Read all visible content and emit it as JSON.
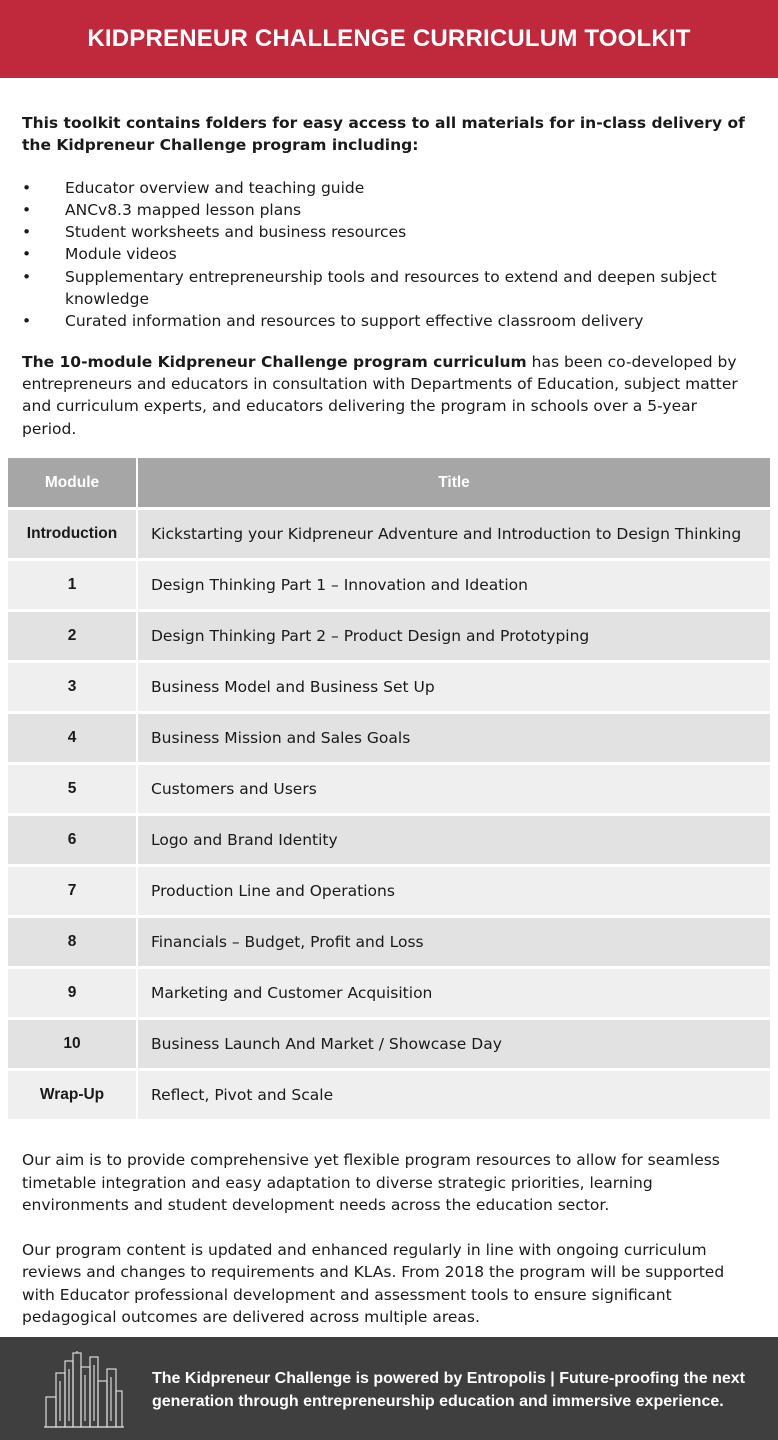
{
  "header": {
    "title": "KIDPRENEUR CHALLENGE CURRICULUM TOOLKIT"
  },
  "intro": {
    "text": "This toolkit contains folders for easy access to all materials for in-class delivery of the Kidpreneur Challenge program including:",
    "bullet_glyph": "•",
    "bullets": [
      "Educator overview and teaching guide",
      "ANCv8.3 mapped lesson plans",
      "Student worksheets and business resources",
      "Module videos",
      "Supplementary entrepreneurship tools and resources to extend and deepen subject knowledge",
      "Curated information and resources to support effective classroom delivery"
    ]
  },
  "curriculum": {
    "lead": "The 10-module Kidpreneur Challenge program curriculum",
    "rest": " has been co-developed by entrepreneurs and educators in consultation with Departments of Education, subject matter and curriculum experts, and educators delivering the program in schools over a 5-year period."
  },
  "table": {
    "headers": {
      "module": "Module",
      "title": "Title"
    },
    "rows": [
      {
        "module": "Introduction",
        "title": "Kickstarting your Kidpreneur Adventure and Introduction to Design Thinking"
      },
      {
        "module": "1",
        "title": "Design Thinking Part 1 – Innovation and Ideation"
      },
      {
        "module": "2",
        "title": "Design Thinking Part 2 – Product Design and Prototyping"
      },
      {
        "module": "3",
        "title": "Business Model and Business Set Up"
      },
      {
        "module": "4",
        "title": "Business Mission and Sales Goals"
      },
      {
        "module": "5",
        "title": "Customers and Users"
      },
      {
        "module": "6",
        "title": "Logo and Brand Identity"
      },
      {
        "module": "7",
        "title": "Production Line and Operations"
      },
      {
        "module": "8",
        "title": "Financials – Budget, Profit and Loss"
      },
      {
        "module": "9",
        "title": "Marketing and Customer Acquisition"
      },
      {
        "module": "10",
        "title": "Business Launch And Market / Showcase Day"
      },
      {
        "module": "Wrap-Up",
        "title": "Reflect, Pivot and Scale"
      }
    ]
  },
  "outro": {
    "aim": "Our aim is to provide comprehensive yet flexible program resources to allow for seamless timetable integration and easy adaptation to diverse strategic priorities, learning environments and student development needs across the education sector.",
    "updates": "Our program content is updated and enhanced regularly in line with ongoing curriculum reviews and changes to requirements and KLAs. From 2018 the program will be supported with Educator professional development and assessment tools to ensure significant pedagogical outcomes are delivered across multiple areas."
  },
  "footer": {
    "icon": "city-skyline-icon",
    "text": "The Kidpreneur Challenge is powered by Entropolis | Future-proofing the next generation through entrepreneurship education and immersive experience."
  },
  "colors": {
    "header_bg": "#c0283c",
    "table_header_bg": "#a6a6a6",
    "footer_bg": "#3f3f3f"
  }
}
